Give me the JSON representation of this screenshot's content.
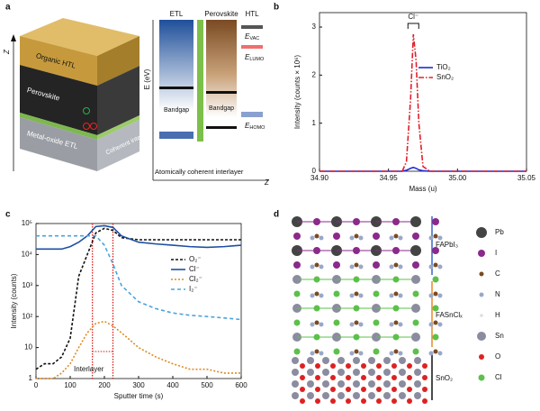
{
  "panel_labels": [
    "a",
    "b",
    "c",
    "d"
  ],
  "panel_a": {
    "stack_layers": [
      "Organic HTL",
      "Perovskite",
      "Metal-oxide ETL",
      "Coherent interlayer"
    ],
    "stack_axis": "Z",
    "columns": [
      "ETL",
      "Perovskite",
      "HTL"
    ],
    "energy_axis": "E (eV)",
    "levels": [
      {
        "symbol": "E",
        "subscript": "VAC"
      },
      {
        "symbol": "E",
        "subscript": "LUMO"
      },
      {
        "symbol": "E",
        "subscript": "HOMO"
      }
    ],
    "bandgap_labels": [
      "Bandgap",
      "Bandgap"
    ],
    "interlayer_caption": "Atomically coherent interlayer",
    "position_axis": "Z"
  },
  "chart_data": [
    {
      "type": "line",
      "x_label": "Mass (u)",
      "y_label": "Intensity (counts × 10⁶)",
      "annotation": "Cl⁻",
      "x": [
        34.9,
        34.95,
        34.96,
        34.963,
        34.966,
        34.968,
        34.97,
        34.972,
        34.975,
        34.98,
        35.0,
        35.05
      ],
      "series": [
        {
          "name": "TiO₂",
          "color": "#1f2bd6",
          "dash": "none",
          "values": [
            0,
            0,
            0,
            0.02,
            0.06,
            0.08,
            0.06,
            0.03,
            0.01,
            0,
            0,
            0
          ]
        },
        {
          "name": "SnO₂",
          "color": "#e0202a",
          "dash": "6 2 1.5 2",
          "values": [
            0,
            0,
            0,
            0.2,
            1.5,
            2.85,
            2.3,
            1.0,
            0.1,
            0,
            0,
            0
          ]
        }
      ],
      "xlim": [
        34.9,
        35.05
      ],
      "xticks": [
        {
          "value": 34.9,
          "label": "34.90"
        },
        34.95,
        {
          "value": 35.0,
          "label": "35.00"
        },
        35.05
      ],
      "ylim": [
        0,
        3.3
      ],
      "yticks": [
        0,
        1,
        2,
        3
      ],
      "grid": false
    },
    {
      "type": "line",
      "x_label": "Sputter time (s)",
      "y_label": "Intensity (counts)",
      "annotation": "Interlayer",
      "interlayer_bounds": [
        165,
        225
      ],
      "log_scale": true,
      "x": [
        0,
        25,
        50,
        75,
        100,
        125,
        150,
        175,
        200,
        225,
        250,
        300,
        350,
        400,
        450,
        500,
        550,
        600
      ],
      "series": [
        {
          "name": "O₂⁻",
          "color": "#111111",
          "dash": "3 2",
          "values": [
            2,
            3,
            3,
            5,
            20,
            2000,
            10000,
            50000,
            70000,
            60000,
            35000,
            30000,
            30000,
            30000,
            30000,
            30000,
            30000,
            30000
          ]
        },
        {
          "name": "Cl⁻",
          "color": "#1d4fa3",
          "dash": "none",
          "values": [
            15000,
            15000,
            15000,
            15000,
            18000,
            25000,
            40000,
            80000,
            85000,
            75000,
            40000,
            25000,
            22000,
            20000,
            18000,
            17000,
            18000,
            20000
          ]
        },
        {
          "name": "Cl₂⁻",
          "color": "#e08a1e",
          "dash": "2 2",
          "values": [
            1,
            1,
            1,
            1.5,
            3,
            10,
            30,
            60,
            70,
            50,
            30,
            10,
            5,
            3,
            2,
            2,
            1.5,
            1.5
          ]
        },
        {
          "name": "I₂⁻",
          "color": "#4ba3dc",
          "dash": "4 3",
          "values": [
            40000,
            40000,
            40000,
            40000,
            40000,
            40000,
            40000,
            40000,
            20000,
            5000,
            1000,
            300,
            180,
            130,
            110,
            100,
            90,
            80
          ]
        }
      ],
      "xlim": [
        0,
        600
      ],
      "xticks": [
        0,
        100,
        200,
        300,
        400,
        500,
        600
      ],
      "ylim": [
        1,
        100000
      ],
      "yticks": [
        1,
        {
          "value": 10,
          "label": "10"
        },
        {
          "value": 100,
          "label": "10²"
        },
        {
          "value": 1000,
          "label": "10³"
        },
        {
          "value": 10000,
          "label": "10⁴"
        },
        {
          "value": 100000,
          "label": "10⁵"
        }
      ],
      "grid": false
    }
  ],
  "panel_d": {
    "regions": [
      "FAPbI₃",
      "FASnClₓ",
      "SnO₂"
    ],
    "legend": [
      "Pb",
      "I",
      "C",
      "N",
      "H",
      "Sn",
      "O",
      "Cl"
    ]
  }
}
